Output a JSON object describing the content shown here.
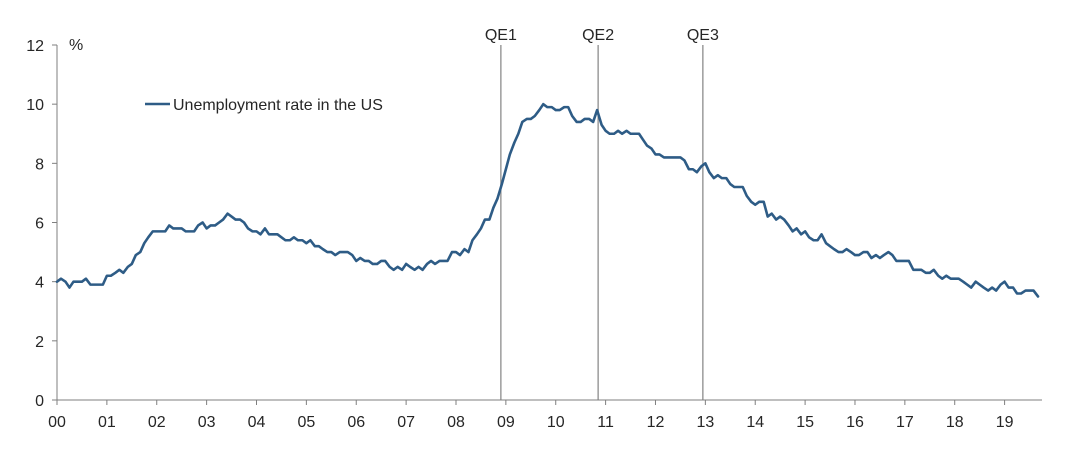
{
  "chart_data": {
    "type": "line",
    "title": "",
    "xlabel": "",
    "ylabel": "%",
    "ylim": [
      0,
      12
    ],
    "xlim": [
      2000,
      2019.75
    ],
    "y_ticks": [
      0,
      2,
      4,
      6,
      8,
      10,
      12
    ],
    "x_ticks": [
      {
        "value": 2000,
        "label": "00"
      },
      {
        "value": 2001,
        "label": "01"
      },
      {
        "value": 2002,
        "label": "02"
      },
      {
        "value": 2003,
        "label": "03"
      },
      {
        "value": 2004,
        "label": "04"
      },
      {
        "value": 2005,
        "label": "05"
      },
      {
        "value": 2006,
        "label": "06"
      },
      {
        "value": 2007,
        "label": "07"
      },
      {
        "value": 2008,
        "label": "08"
      },
      {
        "value": 2009,
        "label": "09"
      },
      {
        "value": 2010,
        "label": "10"
      },
      {
        "value": 2011,
        "label": "11"
      },
      {
        "value": 2012,
        "label": "12"
      },
      {
        "value": 2013,
        "label": "13"
      },
      {
        "value": 2014,
        "label": "14"
      },
      {
        "value": 2015,
        "label": "15"
      },
      {
        "value": 2016,
        "label": "16"
      },
      {
        "value": 2017,
        "label": "17"
      },
      {
        "value": 2018,
        "label": "18"
      },
      {
        "value": 2019,
        "label": "19"
      }
    ],
    "grid": false,
    "legend": {
      "placement": "top-left",
      "entries": [
        "Unemployment rate in the US"
      ]
    },
    "annotations": [
      {
        "label": "QE1",
        "x": 2008.9
      },
      {
        "label": "QE2",
        "x": 2010.85
      },
      {
        "label": "QE3",
        "x": 2012.95
      }
    ],
    "series": [
      {
        "name": "Unemployment rate in the US",
        "color": "#2e5c86",
        "x": [
          2000,
          2000.08,
          2000.17,
          2000.25,
          2000.33,
          2000.42,
          2000.5,
          2000.58,
          2000.67,
          2000.75,
          2000.83,
          2000.92,
          2001,
          2001.08,
          2001.17,
          2001.25,
          2001.33,
          2001.42,
          2001.5,
          2001.58,
          2001.67,
          2001.75,
          2001.83,
          2001.92,
          2002,
          2002.08,
          2002.17,
          2002.25,
          2002.33,
          2002.42,
          2002.5,
          2002.58,
          2002.67,
          2002.75,
          2002.83,
          2002.92,
          2003,
          2003.08,
          2003.17,
          2003.25,
          2003.33,
          2003.42,
          2003.5,
          2003.58,
          2003.67,
          2003.75,
          2003.83,
          2003.92,
          2004,
          2004.08,
          2004.17,
          2004.25,
          2004.33,
          2004.42,
          2004.5,
          2004.58,
          2004.67,
          2004.75,
          2004.83,
          2004.92,
          2005,
          2005.08,
          2005.17,
          2005.25,
          2005.33,
          2005.42,
          2005.5,
          2005.58,
          2005.67,
          2005.75,
          2005.83,
          2005.92,
          2006,
          2006.08,
          2006.17,
          2006.25,
          2006.33,
          2006.42,
          2006.5,
          2006.58,
          2006.67,
          2006.75,
          2006.83,
          2006.92,
          2007,
          2007.08,
          2007.17,
          2007.25,
          2007.33,
          2007.42,
          2007.5,
          2007.58,
          2007.67,
          2007.75,
          2007.83,
          2007.92,
          2008,
          2008.08,
          2008.17,
          2008.25,
          2008.33,
          2008.42,
          2008.5,
          2008.58,
          2008.67,
          2008.75,
          2008.83,
          2008.92,
          2009,
          2009.08,
          2009.17,
          2009.25,
          2009.33,
          2009.42,
          2009.5,
          2009.58,
          2009.67,
          2009.75,
          2009.83,
          2009.92,
          2010,
          2010.08,
          2010.17,
          2010.25,
          2010.33,
          2010.42,
          2010.5,
          2010.58,
          2010.67,
          2010.75,
          2010.83,
          2010.92,
          2011,
          2011.08,
          2011.17,
          2011.25,
          2011.33,
          2011.42,
          2011.5,
          2011.58,
          2011.67,
          2011.75,
          2011.83,
          2011.92,
          2012,
          2012.08,
          2012.17,
          2012.25,
          2012.33,
          2012.42,
          2012.5,
          2012.58,
          2012.67,
          2012.75,
          2012.83,
          2012.92,
          2013,
          2013.08,
          2013.17,
          2013.25,
          2013.33,
          2013.42,
          2013.5,
          2013.58,
          2013.67,
          2013.75,
          2013.83,
          2013.92,
          2014,
          2014.08,
          2014.17,
          2014.25,
          2014.33,
          2014.42,
          2014.5,
          2014.58,
          2014.67,
          2014.75,
          2014.83,
          2014.92,
          2015,
          2015.08,
          2015.17,
          2015.25,
          2015.33,
          2015.42,
          2015.5,
          2015.58,
          2015.67,
          2015.75,
          2015.83,
          2015.92,
          2016,
          2016.08,
          2016.17,
          2016.25,
          2016.33,
          2016.42,
          2016.5,
          2016.58,
          2016.67,
          2016.75,
          2016.83,
          2016.92,
          2017,
          2017.08,
          2017.17,
          2017.25,
          2017.33,
          2017.42,
          2017.5,
          2017.58,
          2017.67,
          2017.75,
          2017.83,
          2017.92,
          2018,
          2018.08,
          2018.17,
          2018.25,
          2018.33,
          2018.42,
          2018.5,
          2018.58,
          2018.67,
          2018.75,
          2018.83,
          2018.92,
          2019,
          2019.08,
          2019.17,
          2019.25,
          2019.33,
          2019.42,
          2019.5,
          2019.58,
          2019.67
        ],
        "values": [
          4.0,
          4.1,
          4.0,
          3.8,
          4.0,
          4.0,
          4.0,
          4.1,
          3.9,
          3.9,
          3.9,
          3.9,
          4.2,
          4.2,
          4.3,
          4.4,
          4.3,
          4.5,
          4.6,
          4.9,
          5.0,
          5.3,
          5.5,
          5.7,
          5.7,
          5.7,
          5.7,
          5.9,
          5.8,
          5.8,
          5.8,
          5.7,
          5.7,
          5.7,
          5.9,
          6.0,
          5.8,
          5.9,
          5.9,
          6.0,
          6.1,
          6.3,
          6.2,
          6.1,
          6.1,
          6.0,
          5.8,
          5.7,
          5.7,
          5.6,
          5.8,
          5.6,
          5.6,
          5.6,
          5.5,
          5.4,
          5.4,
          5.5,
          5.4,
          5.4,
          5.3,
          5.4,
          5.2,
          5.2,
          5.1,
          5.0,
          5.0,
          4.9,
          5.0,
          5.0,
          5.0,
          4.9,
          4.7,
          4.8,
          4.7,
          4.7,
          4.6,
          4.6,
          4.7,
          4.7,
          4.5,
          4.4,
          4.5,
          4.4,
          4.6,
          4.5,
          4.4,
          4.5,
          4.4,
          4.6,
          4.7,
          4.6,
          4.7,
          4.7,
          4.7,
          5.0,
          5.0,
          4.9,
          5.1,
          5.0,
          5.4,
          5.6,
          5.8,
          6.1,
          6.1,
          6.5,
          6.8,
          7.3,
          7.8,
          8.3,
          8.7,
          9.0,
          9.4,
          9.5,
          9.5,
          9.6,
          9.8,
          10.0,
          9.9,
          9.9,
          9.8,
          9.8,
          9.9,
          9.9,
          9.6,
          9.4,
          9.4,
          9.5,
          9.5,
          9.4,
          9.8,
          9.3,
          9.1,
          9.0,
          9.0,
          9.1,
          9.0,
          9.1,
          9.0,
          9.0,
          9.0,
          8.8,
          8.6,
          8.5,
          8.3,
          8.3,
          8.2,
          8.2,
          8.2,
          8.2,
          8.2,
          8.1,
          7.8,
          7.8,
          7.7,
          7.9,
          8.0,
          7.7,
          7.5,
          7.6,
          7.5,
          7.5,
          7.3,
          7.2,
          7.2,
          7.2,
          6.9,
          6.7,
          6.6,
          6.7,
          6.7,
          6.2,
          6.3,
          6.1,
          6.2,
          6.1,
          5.9,
          5.7,
          5.8,
          5.6,
          5.7,
          5.5,
          5.4,
          5.4,
          5.6,
          5.3,
          5.2,
          5.1,
          5.0,
          5.0,
          5.1,
          5.0,
          4.9,
          4.9,
          5.0,
          5.0,
          4.8,
          4.9,
          4.8,
          4.9,
          5.0,
          4.9,
          4.7,
          4.7,
          4.7,
          4.7,
          4.4,
          4.4,
          4.4,
          4.3,
          4.3,
          4.4,
          4.2,
          4.1,
          4.2,
          4.1,
          4.1,
          4.1,
          4.0,
          3.9,
          3.8,
          4.0,
          3.9,
          3.8,
          3.7,
          3.8,
          3.7,
          3.9,
          4.0,
          3.8,
          3.8,
          3.6,
          3.6,
          3.7,
          3.7,
          3.7,
          3.5
        ]
      }
    ]
  }
}
